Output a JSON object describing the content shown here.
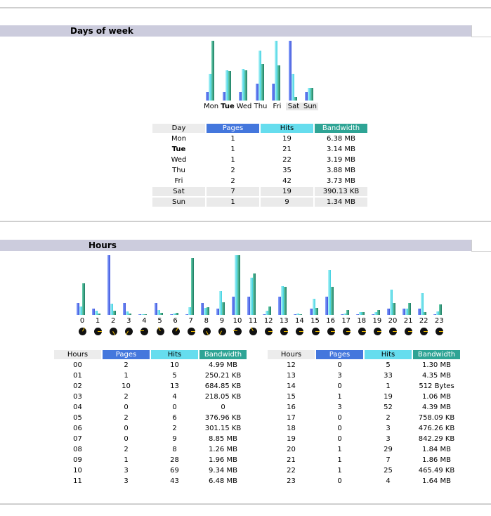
{
  "days_section": {
    "title": "Days of week",
    "table_headers": [
      "Day",
      "Pages",
      "Hits",
      "Bandwidth"
    ],
    "rows": [
      {
        "day": "Mon",
        "pages": "1",
        "hits": "19",
        "bandwidth": "6.38 MB",
        "bold": false,
        "weekend": false
      },
      {
        "day": "Tue",
        "pages": "1",
        "hits": "21",
        "bandwidth": "3.14 MB",
        "bold": true,
        "weekend": false
      },
      {
        "day": "Wed",
        "pages": "1",
        "hits": "22",
        "bandwidth": "3.19 MB",
        "bold": false,
        "weekend": false
      },
      {
        "day": "Thu",
        "pages": "2",
        "hits": "35",
        "bandwidth": "3.88 MB",
        "bold": false,
        "weekend": false
      },
      {
        "day": "Fri",
        "pages": "2",
        "hits": "42",
        "bandwidth": "3.73 MB",
        "bold": false,
        "weekend": false
      },
      {
        "day": "Sat",
        "pages": "7",
        "hits": "19",
        "bandwidth": "390.13 KB",
        "bold": false,
        "weekend": true
      },
      {
        "day": "Sun",
        "pages": "1",
        "hits": "9",
        "bandwidth": "1.34 MB",
        "bold": false,
        "weekend": true
      }
    ]
  },
  "hours_section": {
    "title": "Hours",
    "table_headers": [
      "Hours",
      "Pages",
      "Hits",
      "Bandwidth"
    ],
    "rows": [
      {
        "hour": "00",
        "pages": "2",
        "hits": "10",
        "bandwidth": "4.99 MB"
      },
      {
        "hour": "01",
        "pages": "1",
        "hits": "5",
        "bandwidth": "250.21 KB"
      },
      {
        "hour": "02",
        "pages": "10",
        "hits": "13",
        "bandwidth": "684.85 KB"
      },
      {
        "hour": "03",
        "pages": "2",
        "hits": "4",
        "bandwidth": "218.05 KB"
      },
      {
        "hour": "04",
        "pages": "0",
        "hits": "0",
        "bandwidth": "0"
      },
      {
        "hour": "05",
        "pages": "2",
        "hits": "6",
        "bandwidth": "376.96 KB"
      },
      {
        "hour": "06",
        "pages": "0",
        "hits": "2",
        "bandwidth": "301.15 KB"
      },
      {
        "hour": "07",
        "pages": "0",
        "hits": "9",
        "bandwidth": "8.85 MB"
      },
      {
        "hour": "08",
        "pages": "2",
        "hits": "8",
        "bandwidth": "1.26 MB"
      },
      {
        "hour": "09",
        "pages": "1",
        "hits": "28",
        "bandwidth": "1.96 MB"
      },
      {
        "hour": "10",
        "pages": "3",
        "hits": "69",
        "bandwidth": "9.34 MB"
      },
      {
        "hour": "11",
        "pages": "3",
        "hits": "43",
        "bandwidth": "6.48 MB"
      },
      {
        "hour": "12",
        "pages": "0",
        "hits": "5",
        "bandwidth": "1.30 MB"
      },
      {
        "hour": "13",
        "pages": "3",
        "hits": "33",
        "bandwidth": "4.35 MB"
      },
      {
        "hour": "14",
        "pages": "0",
        "hits": "1",
        "bandwidth": "512 Bytes"
      },
      {
        "hour": "15",
        "pages": "1",
        "hits": "19",
        "bandwidth": "1.06 MB"
      },
      {
        "hour": "16",
        "pages": "3",
        "hits": "52",
        "bandwidth": "4.39 MB"
      },
      {
        "hour": "17",
        "pages": "0",
        "hits": "2",
        "bandwidth": "758.09 KB"
      },
      {
        "hour": "18",
        "pages": "0",
        "hits": "3",
        "bandwidth": "476.26 KB"
      },
      {
        "hour": "19",
        "pages": "0",
        "hits": "3",
        "bandwidth": "842.29 KB"
      },
      {
        "hour": "20",
        "pages": "1",
        "hits": "29",
        "bandwidth": "1.84 MB"
      },
      {
        "hour": "21",
        "pages": "1",
        "hits": "7",
        "bandwidth": "1.86 MB"
      },
      {
        "hour": "22",
        "pages": "1",
        "hits": "25",
        "bandwidth": "465.49 KB"
      },
      {
        "hour": "23",
        "pages": "0",
        "hits": "4",
        "bandwidth": "1.64 MB"
      }
    ],
    "hour_axis_labels": [
      "0",
      "1",
      "2",
      "3",
      "4",
      "5",
      "6",
      "7",
      "8",
      "9",
      "10",
      "11",
      "12",
      "13",
      "14",
      "15",
      "16",
      "17",
      "18",
      "19",
      "20",
      "21",
      "22",
      "23"
    ]
  },
  "colors": {
    "pages": "#4477dd",
    "hits": "#66ddee",
    "bandwidth": "#2ea495",
    "section_bar": "#ccccdd"
  },
  "chart_data": [
    {
      "type": "bar",
      "categories": [
        "Mon",
        "Tue",
        "Wed",
        "Thu",
        "Fri",
        "Sat",
        "Sun"
      ],
      "series": [
        {
          "name": "Pages",
          "values": [
            1,
            1,
            1,
            2,
            2,
            7,
            1
          ]
        },
        {
          "name": "Hits",
          "values": [
            19,
            21,
            22,
            35,
            42,
            19,
            9
          ]
        },
        {
          "name": "Bandwidth",
          "values": [
            6.38,
            3.14,
            3.19,
            3.88,
            3.73,
            0.38,
            1.34
          ]
        }
      ]
    },
    {
      "type": "bar",
      "categories": [
        "0",
        "1",
        "2",
        "3",
        "4",
        "5",
        "6",
        "7",
        "8",
        "9",
        "10",
        "11",
        "12",
        "13",
        "14",
        "15",
        "16",
        "17",
        "18",
        "19",
        "20",
        "21",
        "22",
        "23"
      ],
      "series": [
        {
          "name": "Pages",
          "values": [
            2,
            1,
            10,
            2,
            0,
            2,
            0,
            0,
            2,
            1,
            3,
            3,
            0,
            3,
            0,
            1,
            3,
            0,
            0,
            0,
            1,
            1,
            1,
            0
          ]
        },
        {
          "name": "Hits",
          "values": [
            10,
            5,
            13,
            4,
            0,
            6,
            2,
            9,
            8,
            28,
            69,
            43,
            5,
            33,
            1,
            19,
            52,
            2,
            3,
            3,
            29,
            7,
            25,
            4
          ]
        },
        {
          "name": "Bandwidth",
          "values": [
            4.99,
            0.24,
            0.67,
            0.21,
            0,
            0.37,
            0.29,
            8.85,
            1.26,
            1.96,
            9.34,
            6.48,
            1.3,
            4.35,
            0,
            1.06,
            4.39,
            0.74,
            0.47,
            0.82,
            1.84,
            1.86,
            0.45,
            1.64
          ]
        }
      ]
    }
  ]
}
